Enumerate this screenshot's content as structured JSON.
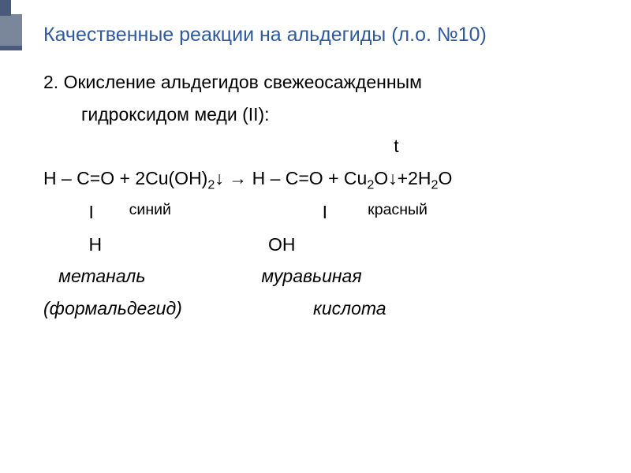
{
  "slide": {
    "title": "Качественные реакции на альдегиды (л.о. №10)",
    "subtitle_line1": "2. Окисление альдегидов свежеосажденным",
    "subtitle_line2": "гидроксидом меди (II):",
    "temp_mark": "t",
    "eq": {
      "left_top": "H – C=O + 2Cu(OH)",
      "left_top_sub": "2",
      "arrow_down1": "↓",
      "arrow": " → ",
      "right_top": "H – C=O + Cu",
      "right_sub1": "2",
      "right_mid": "O",
      "arrow_down2": "↓",
      "right_tail": "+2H",
      "right_sub2": "2",
      "right_end": "O"
    },
    "row2": {
      "col1": "         I       ",
      "label1": "синий",
      "col2": "                              I        ",
      "label2": "красный"
    },
    "row3": {
      "col1": "         H",
      "col2": "                                 OH"
    },
    "names": {
      "left_top": "   метаналь",
      "right_top": "                       муравьиная",
      "left_bot": "(формальдегид)",
      "right_bot": "                          кислота"
    }
  },
  "colors": {
    "title": "#2d5aa0",
    "body": "#000000",
    "background": "#ffffff"
  }
}
